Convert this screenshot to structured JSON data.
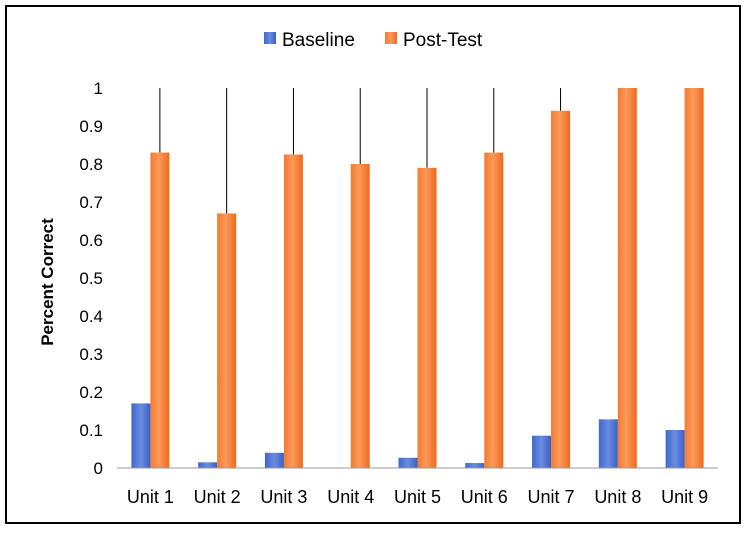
{
  "chart_data": {
    "type": "bar",
    "title": "",
    "xlabel": "",
    "ylabel": "Percent Correct",
    "ylim": [
      0,
      1
    ],
    "yticks": [
      "0",
      "0.1",
      "0.2",
      "0.3",
      "0.4",
      "0.5",
      "0.6",
      "0.7",
      "0.8",
      "0.9",
      "1"
    ],
    "categories": [
      "Unit 1",
      "Unit 2",
      "Unit 3",
      "Unit 4",
      "Unit 5",
      "Unit 6",
      "Unit 7",
      "Unit 8",
      "Unit 9"
    ],
    "series": [
      {
        "name": "Baseline",
        "color": "#4472C4",
        "values": [
          0.17,
          0.015,
          0.04,
          0.0,
          0.027,
          0.013,
          0.085,
          0.128,
          0.1
        ]
      },
      {
        "name": "Post-Test",
        "color": "#ED7D31",
        "values": [
          0.83,
          0.67,
          0.825,
          0.8,
          0.79,
          0.83,
          0.94,
          1.0,
          1.0
        ]
      }
    ],
    "error_bar_tops": [
      1.0,
      1.0,
      1.0,
      1.0,
      1.0,
      1.0,
      1.0,
      1.0,
      1.0
    ],
    "legend_position": "top-center",
    "grid": false
  }
}
